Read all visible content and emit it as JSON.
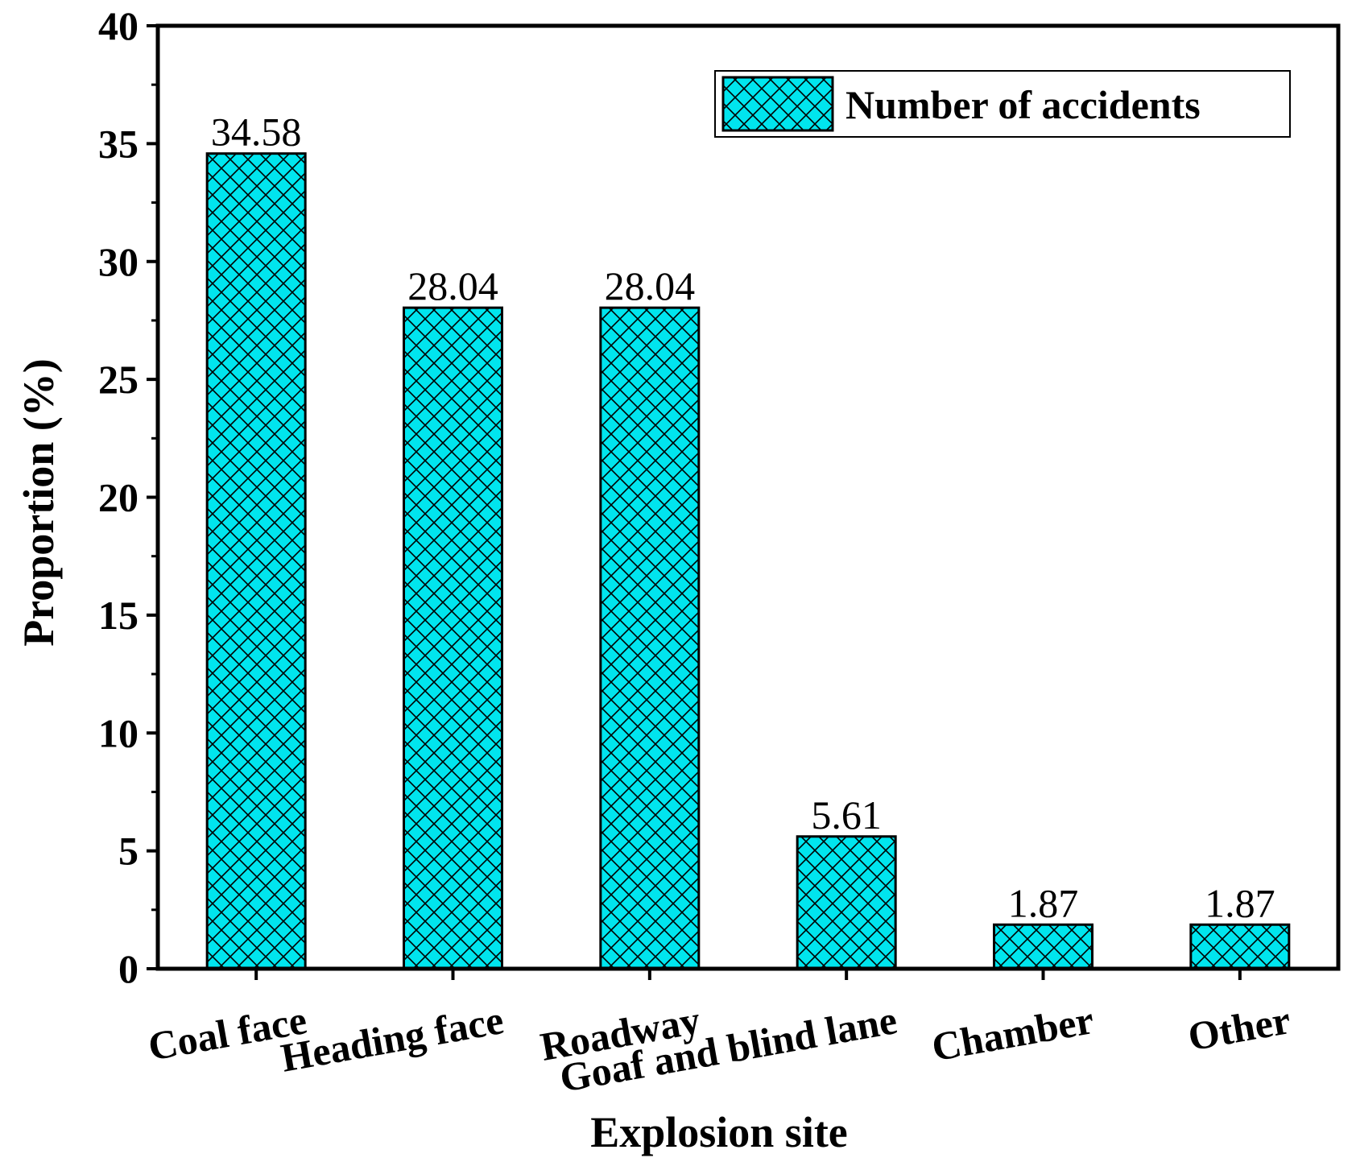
{
  "chart_data": {
    "type": "bar",
    "categories": [
      "Coal face",
      "Heading face",
      "Roadway",
      "Goaf and blind lane",
      "Chamber",
      "Other"
    ],
    "series": [
      {
        "name": "Number of accidents",
        "values": [
          34.58,
          28.04,
          28.04,
          5.61,
          1.87,
          1.87
        ]
      }
    ],
    "data_labels": [
      "34.58",
      "28.04",
      "28.04",
      "5.61",
      "1.87",
      "1.87"
    ],
    "xlabel": "Explosion site",
    "ylabel": "Proportion (%)",
    "ylim": [
      0,
      40
    ],
    "yticks": [
      "0",
      "5",
      "10",
      "15",
      "20",
      "25",
      "30",
      "35",
      "40"
    ],
    "legend": {
      "label": "Number of accidents",
      "position": "top-right"
    },
    "grid": false,
    "colors": {
      "bar_fill": "#00e5ee",
      "hatch": "#000000",
      "axis": "#000000"
    },
    "hatch_pattern": "crosshatch"
  }
}
